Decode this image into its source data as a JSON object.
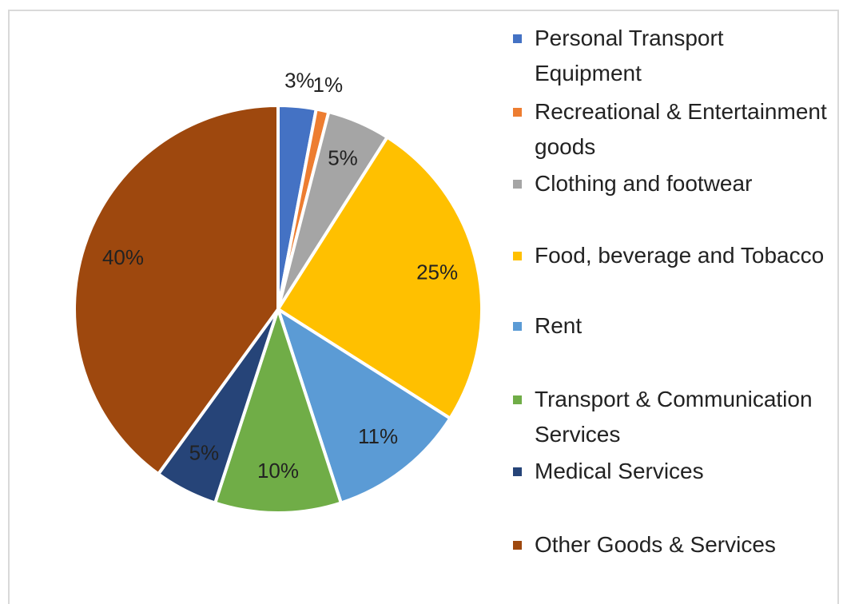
{
  "chart_data": {
    "type": "pie",
    "categories": [
      "Personal Transport Equipment",
      "Recreational & Entertainment goods",
      "Clothing and footwear",
      "Food, beverage and Tobacco",
      "Rent",
      "Transport & Communication Services",
      "Medical Services",
      "Other Goods & Services"
    ],
    "values": [
      3,
      1,
      5,
      25,
      11,
      10,
      5,
      40
    ],
    "value_labels": [
      "3%",
      "1%",
      "5%",
      "25%",
      "11%",
      "10%",
      "5%",
      "40%"
    ],
    "colors": [
      "#4472c4",
      "#ed7d31",
      "#a5a5a5",
      "#ffc000",
      "#5b9bd5",
      "#70ad47",
      "#264478",
      "#9e480e"
    ],
    "legend": "right"
  }
}
